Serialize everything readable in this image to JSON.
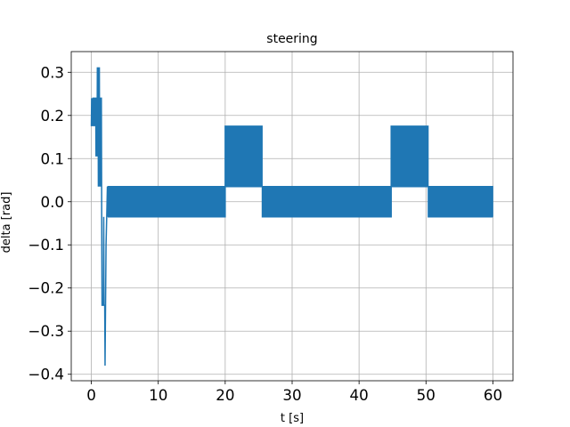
{
  "chart_data": {
    "type": "line",
    "title": "steering",
    "xlabel": "t [s]",
    "ylabel": "delta [rad]",
    "xlim": [
      -3,
      63
    ],
    "ylim": [
      -0.415,
      0.348
    ],
    "grid": true,
    "color": "#1f77b4",
    "xticks": [
      0,
      10,
      20,
      30,
      40,
      50,
      60
    ],
    "xtick_labels": [
      "0",
      "10",
      "20",
      "30",
      "40",
      "50",
      "60"
    ],
    "yticks": [
      -0.4,
      -0.3,
      -0.2,
      -0.1,
      0.0,
      0.1,
      0.2,
      0.3
    ],
    "ytick_labels": [
      "−0.4",
      "−0.3",
      "−0.2",
      "−0.1",
      "0.0",
      "0.1",
      "0.2",
      "0.3"
    ],
    "series": [
      {
        "points": [
          [
            0.0,
            0.175
          ],
          [
            0.05,
            0.24
          ],
          [
            0.1,
            0.175
          ],
          [
            0.15,
            0.24
          ],
          [
            0.2,
            0.175
          ],
          [
            0.25,
            0.24
          ],
          [
            0.35,
            0.24
          ],
          [
            0.4,
            0.175
          ],
          [
            0.45,
            0.24
          ],
          [
            0.5,
            0.24
          ],
          [
            0.55,
            0.175
          ],
          [
            0.6,
            0.24
          ],
          [
            0.65,
            0.24
          ],
          [
            0.7,
            0.105
          ],
          [
            0.75,
            0.24
          ],
          [
            0.8,
            0.24
          ],
          [
            0.85,
            0.105
          ],
          [
            0.9,
            0.31
          ],
          [
            1.0,
            0.31
          ],
          [
            1.05,
            0.035
          ],
          [
            1.1,
            0.31
          ],
          [
            1.2,
            0.31
          ],
          [
            1.25,
            0.035
          ],
          [
            1.3,
            0.24
          ],
          [
            1.35,
            0.24
          ],
          [
            1.4,
            0.035
          ],
          [
            1.45,
            0.24
          ],
          [
            1.5,
            0.24
          ],
          [
            1.55,
            -0.035
          ],
          [
            1.6,
            -0.24
          ],
          [
            1.8,
            -0.24
          ],
          [
            1.85,
            -0.035
          ],
          [
            1.9,
            -0.24
          ],
          [
            2.0,
            -0.24
          ],
          [
            2.05,
            -0.38
          ],
          [
            2.2,
            -0.1
          ],
          [
            2.3,
            -0.035
          ],
          [
            2.4,
            0.035
          ],
          [
            2.5,
            -0.035
          ]
        ],
        "segments": [
          {
            "t_start": 2.5,
            "t_end": 20.0,
            "low": -0.035,
            "high": 0.035,
            "period": 0.1
          },
          {
            "t_start": 20.0,
            "t_end": 25.5,
            "low": 0.035,
            "high": 0.175,
            "period": 0.2
          },
          {
            "t_start": 25.5,
            "t_end": 44.8,
            "low": -0.035,
            "high": 0.035,
            "period": 0.1
          },
          {
            "t_start": 44.8,
            "t_end": 50.3,
            "low": 0.035,
            "high": 0.175,
            "period": 0.2
          },
          {
            "t_start": 50.3,
            "t_end": 60.0,
            "low": -0.035,
            "high": 0.035,
            "period": 0.1
          }
        ]
      }
    ]
  }
}
